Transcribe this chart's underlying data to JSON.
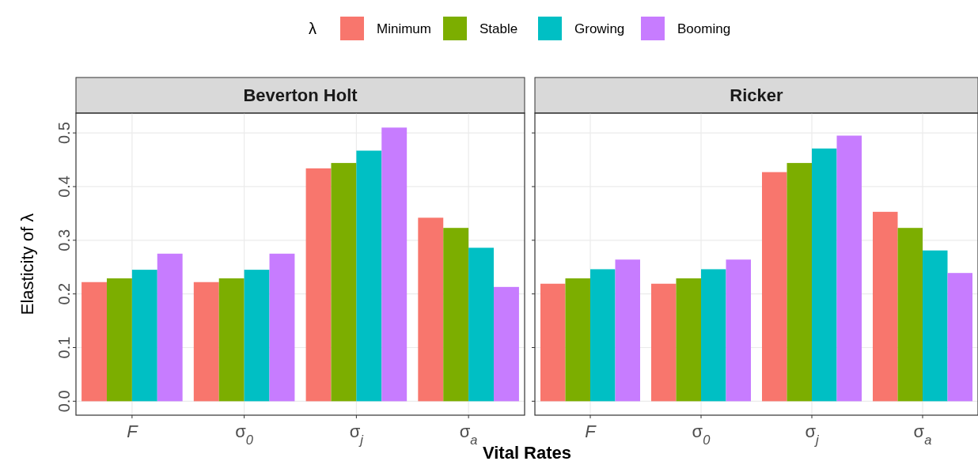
{
  "chart_data": [
    {
      "type": "bar",
      "title": "Beverton Holt",
      "xlabel": "Vital Rates",
      "ylabel": "Elasticity of λ",
      "legend_title": "λ",
      "legend": "top",
      "categories": [
        "F",
        "σ$_{0}$",
        "σ$_{j}$",
        "σ$_{a}$"
      ],
      "series": [
        {
          "name": "Minimum",
          "color": "#f8766d",
          "values": [
            0.222,
            0.222,
            0.434,
            0.342
          ]
        },
        {
          "name": "Stable",
          "color": "#7cae00",
          "values": [
            0.229,
            0.229,
            0.444,
            0.323
          ]
        },
        {
          "name": "Growing",
          "color": "#00bfc4",
          "values": [
            0.245,
            0.245,
            0.467,
            0.286
          ]
        },
        {
          "name": "Booming",
          "color": "#c77cff",
          "values": [
            0.275,
            0.275,
            0.51,
            0.213
          ]
        }
      ],
      "ylim": [
        -0.026,
        0.537
      ],
      "yticks": [
        {
          "value": 0,
          "label": "0.0"
        },
        {
          "value": 0.1,
          "label": "0.1"
        },
        {
          "value": 0.2,
          "label": "0.2"
        },
        {
          "value": 0.3,
          "label": "0.3"
        },
        {
          "value": 0.4,
          "label": "0.4"
        },
        {
          "value": 0.5,
          "label": "0.5"
        }
      ],
      "grid": true
    },
    {
      "type": "bar",
      "title": "Ricker",
      "categories": [
        "F",
        "σ$_{0}$",
        "σ$_{j}$",
        "σ$_{a}$"
      ],
      "series": [
        {
          "color": "#f8766d",
          "values": [
            0.219,
            0.219,
            0.427,
            0.353
          ]
        },
        {
          "color": "#7cae00",
          "values": [
            0.229,
            0.229,
            0.444,
            0.323
          ]
        },
        {
          "color": "#00bfc4",
          "values": [
            0.246,
            0.246,
            0.471,
            0.281
          ]
        },
        {
          "color": "#c77cff",
          "values": [
            0.264,
            0.264,
            0.495,
            0.239
          ]
        }
      ],
      "ylim": [
        -0.026,
        0.537
      ],
      "yticks": [
        0,
        0.1,
        0.2,
        0.3,
        0.4,
        0.5
      ],
      "grid": true,
      "tick_labels": "x"
    }
  ]
}
